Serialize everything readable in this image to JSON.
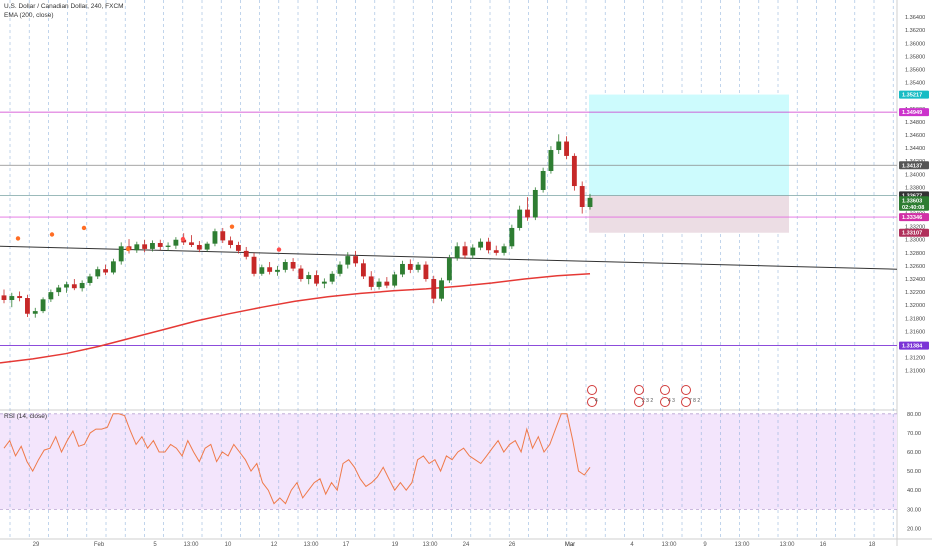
{
  "legend": {
    "symbol": "U.S. Dollar / Canadian Dollar, 240, FXCM",
    "indicator": "EMA (200, close)",
    "rsi_title": "RSI (14, close)"
  },
  "colors": {
    "up": "#2e7d32",
    "down": "#c62828",
    "ema": "#e53935",
    "rsi": "#ef7a4a",
    "rsi_band": "#f3e5fc",
    "tp_zone": "#cdfbfd",
    "sl_zone": "#ecdde4",
    "hline_magenta": "#cc33cc",
    "hline_gray": "#888888",
    "hline_purple": "#7b33d6",
    "trendline": "#333333",
    "vgrid": "#7ea6d6"
  },
  "chart_data": [
    {
      "type": "candlestick",
      "title": "U.S. Dollar / Canadian Dollar, 240, FXCM",
      "ylim": [
        1.304,
        1.366
      ],
      "y_ticks": [
        "1.36400",
        "1.36200",
        "1.36000",
        "1.35800",
        "1.35600",
        "1.35400",
        "1.35200",
        "1.35000",
        "1.34800",
        "1.34600",
        "1.34400",
        "1.34200",
        "1.34000",
        "1.33800",
        "1.33600",
        "1.33400",
        "1.33200",
        "1.33000",
        "1.32800",
        "1.32600",
        "1.32400",
        "1.32200",
        "1.32000",
        "1.31800",
        "1.31600",
        "1.31400",
        "1.31200",
        "1.31000"
      ],
      "x_ticks": [
        "29",
        "Feb",
        "5",
        "13:00",
        "10",
        "12",
        "13:00",
        "17",
        "19",
        "13:00",
        "24",
        "26",
        "Mar",
        "4",
        "13:00",
        "9",
        "13:00",
        "13:00",
        "16",
        "18"
      ],
      "price_labels": [
        {
          "text": "1.35217",
          "value": 1.35217,
          "color": "#17bcc4"
        },
        {
          "text": "1.34949",
          "value": 1.34949,
          "color": "#cc33cc"
        },
        {
          "text": "1.34137",
          "value": 1.34137,
          "color": "#555555"
        },
        {
          "text": "1.33677",
          "value": 1.33677,
          "color": "#333333"
        },
        {
          "text": "1.33603",
          "value": 1.33603,
          "color": "#2e7d32"
        },
        {
          "text": "02:40:08",
          "value": 1.33503,
          "color": "#2e7d32"
        },
        {
          "text": "1.33346",
          "value": 1.33346,
          "color": "#d12fa6"
        },
        {
          "text": "1.33107",
          "value": 1.33107,
          "color": "#b0305b"
        },
        {
          "text": "1.31384",
          "value": 1.31384,
          "color": "#7b33d6"
        }
      ],
      "horizontal_lines": [
        1.34949,
        1.34137,
        1.33677,
        1.33346,
        1.31384
      ],
      "ema_200": [
        1.3112,
        1.3118,
        1.3126,
        1.3137,
        1.315,
        1.3163,
        1.3176,
        1.3187,
        1.3197,
        1.3206,
        1.3213,
        1.3218,
        1.3222,
        1.3225,
        1.3229,
        1.3234,
        1.324,
        1.3245,
        1.3248
      ],
      "trendline": {
        "start": 1.329,
        "end": 1.3255
      },
      "position": {
        "entry": 1.33677,
        "target": 1.35217,
        "stop": 1.33107
      },
      "candles": [
        {
          "o": 1.3215,
          "h": 1.3224,
          "l": 1.3203,
          "c": 1.3208
        },
        {
          "o": 1.3208,
          "h": 1.3219,
          "l": 1.3197,
          "c": 1.3214
        },
        {
          "o": 1.3214,
          "h": 1.3221,
          "l": 1.3206,
          "c": 1.3211
        },
        {
          "o": 1.3211,
          "h": 1.3216,
          "l": 1.3182,
          "c": 1.3187
        },
        {
          "o": 1.3187,
          "h": 1.3196,
          "l": 1.3181,
          "c": 1.3191
        },
        {
          "o": 1.3191,
          "h": 1.3212,
          "l": 1.3188,
          "c": 1.3209
        },
        {
          "o": 1.3209,
          "h": 1.3224,
          "l": 1.3205,
          "c": 1.322
        },
        {
          "o": 1.322,
          "h": 1.3231,
          "l": 1.3214,
          "c": 1.3227
        },
        {
          "o": 1.3227,
          "h": 1.3236,
          "l": 1.3219,
          "c": 1.3232
        },
        {
          "o": 1.3232,
          "h": 1.324,
          "l": 1.3223,
          "c": 1.3226
        },
        {
          "o": 1.3226,
          "h": 1.3238,
          "l": 1.3221,
          "c": 1.3234
        },
        {
          "o": 1.3234,
          "h": 1.3248,
          "l": 1.323,
          "c": 1.3244
        },
        {
          "o": 1.3244,
          "h": 1.3259,
          "l": 1.324,
          "c": 1.3255
        },
        {
          "o": 1.3255,
          "h": 1.3262,
          "l": 1.3246,
          "c": 1.325
        },
        {
          "o": 1.325,
          "h": 1.3271,
          "l": 1.3247,
          "c": 1.3267
        },
        {
          "o": 1.3267,
          "h": 1.3296,
          "l": 1.3262,
          "c": 1.329
        },
        {
          "o": 1.329,
          "h": 1.3301,
          "l": 1.3279,
          "c": 1.3284
        },
        {
          "o": 1.3284,
          "h": 1.3297,
          "l": 1.328,
          "c": 1.3293
        },
        {
          "o": 1.3293,
          "h": 1.33,
          "l": 1.3281,
          "c": 1.3286
        },
        {
          "o": 1.3286,
          "h": 1.3299,
          "l": 1.3282,
          "c": 1.3295
        },
        {
          "o": 1.3295,
          "h": 1.33,
          "l": 1.3284,
          "c": 1.3289
        },
        {
          "o": 1.3289,
          "h": 1.3296,
          "l": 1.3283,
          "c": 1.3291
        },
        {
          "o": 1.3291,
          "h": 1.3304,
          "l": 1.3286,
          "c": 1.33
        },
        {
          "o": 1.33,
          "h": 1.331,
          "l": 1.3292,
          "c": 1.3296
        },
        {
          "o": 1.3296,
          "h": 1.3307,
          "l": 1.3289,
          "c": 1.3292
        },
        {
          "o": 1.3292,
          "h": 1.3298,
          "l": 1.3281,
          "c": 1.3285
        },
        {
          "o": 1.3285,
          "h": 1.3297,
          "l": 1.3282,
          "c": 1.3294
        },
        {
          "o": 1.3294,
          "h": 1.3317,
          "l": 1.329,
          "c": 1.3313
        },
        {
          "o": 1.3313,
          "h": 1.3318,
          "l": 1.3295,
          "c": 1.3299
        },
        {
          "o": 1.3299,
          "h": 1.3305,
          "l": 1.3287,
          "c": 1.3292
        },
        {
          "o": 1.3292,
          "h": 1.3297,
          "l": 1.3279,
          "c": 1.3283
        },
        {
          "o": 1.3283,
          "h": 1.3289,
          "l": 1.327,
          "c": 1.3274
        },
        {
          "o": 1.3274,
          "h": 1.328,
          "l": 1.3244,
          "c": 1.3248
        },
        {
          "o": 1.3248,
          "h": 1.3262,
          "l": 1.3245,
          "c": 1.3258
        },
        {
          "o": 1.3258,
          "h": 1.3266,
          "l": 1.3247,
          "c": 1.3251
        },
        {
          "o": 1.3251,
          "h": 1.326,
          "l": 1.3245,
          "c": 1.3254
        },
        {
          "o": 1.3254,
          "h": 1.327,
          "l": 1.325,
          "c": 1.3266
        },
        {
          "o": 1.3266,
          "h": 1.3272,
          "l": 1.3252,
          "c": 1.3256
        },
        {
          "o": 1.3256,
          "h": 1.3261,
          "l": 1.3236,
          "c": 1.324
        },
        {
          "o": 1.324,
          "h": 1.3251,
          "l": 1.3232,
          "c": 1.3246
        },
        {
          "o": 1.3246,
          "h": 1.3253,
          "l": 1.3229,
          "c": 1.3233
        },
        {
          "o": 1.3233,
          "h": 1.3241,
          "l": 1.3226,
          "c": 1.3236
        },
        {
          "o": 1.3236,
          "h": 1.3252,
          "l": 1.3232,
          "c": 1.3248
        },
        {
          "o": 1.3248,
          "h": 1.3267,
          "l": 1.3244,
          "c": 1.3262
        },
        {
          "o": 1.3262,
          "h": 1.3281,
          "l": 1.3256,
          "c": 1.3275
        },
        {
          "o": 1.3275,
          "h": 1.3283,
          "l": 1.3259,
          "c": 1.3264
        },
        {
          "o": 1.3264,
          "h": 1.327,
          "l": 1.324,
          "c": 1.3244
        },
        {
          "o": 1.3244,
          "h": 1.3252,
          "l": 1.3223,
          "c": 1.3228
        },
        {
          "o": 1.3228,
          "h": 1.3241,
          "l": 1.3224,
          "c": 1.3236
        },
        {
          "o": 1.3236,
          "h": 1.3243,
          "l": 1.3226,
          "c": 1.323
        },
        {
          "o": 1.323,
          "h": 1.3251,
          "l": 1.3227,
          "c": 1.3247
        },
        {
          "o": 1.3247,
          "h": 1.3268,
          "l": 1.3243,
          "c": 1.3263
        },
        {
          "o": 1.3263,
          "h": 1.327,
          "l": 1.3249,
          "c": 1.3254
        },
        {
          "o": 1.3254,
          "h": 1.3266,
          "l": 1.325,
          "c": 1.3262
        },
        {
          "o": 1.3262,
          "h": 1.3267,
          "l": 1.3236,
          "c": 1.324
        },
        {
          "o": 1.324,
          "h": 1.3245,
          "l": 1.3203,
          "c": 1.321
        },
        {
          "o": 1.321,
          "h": 1.3242,
          "l": 1.3206,
          "c": 1.3238
        },
        {
          "o": 1.3238,
          "h": 1.3277,
          "l": 1.3234,
          "c": 1.3272
        },
        {
          "o": 1.3272,
          "h": 1.3296,
          "l": 1.3268,
          "c": 1.329
        },
        {
          "o": 1.329,
          "h": 1.3297,
          "l": 1.3271,
          "c": 1.3276
        },
        {
          "o": 1.3276,
          "h": 1.3293,
          "l": 1.3271,
          "c": 1.3288
        },
        {
          "o": 1.3288,
          "h": 1.3302,
          "l": 1.3284,
          "c": 1.3297
        },
        {
          "o": 1.3297,
          "h": 1.3303,
          "l": 1.3279,
          "c": 1.3284
        },
        {
          "o": 1.3284,
          "h": 1.3291,
          "l": 1.3276,
          "c": 1.328
        },
        {
          "o": 1.328,
          "h": 1.3294,
          "l": 1.3276,
          "c": 1.329
        },
        {
          "o": 1.329,
          "h": 1.3323,
          "l": 1.3286,
          "c": 1.3318
        },
        {
          "o": 1.3318,
          "h": 1.3352,
          "l": 1.3314,
          "c": 1.3346
        },
        {
          "o": 1.3346,
          "h": 1.3365,
          "l": 1.3329,
          "c": 1.3334
        },
        {
          "o": 1.3334,
          "h": 1.338,
          "l": 1.333,
          "c": 1.3376
        },
        {
          "o": 1.3376,
          "h": 1.341,
          "l": 1.3372,
          "c": 1.3405
        },
        {
          "o": 1.3405,
          "h": 1.3443,
          "l": 1.3401,
          "c": 1.3437
        },
        {
          "o": 1.3437,
          "h": 1.3461,
          "l": 1.3431,
          "c": 1.345
        },
        {
          "o": 1.345,
          "h": 1.3458,
          "l": 1.3423,
          "c": 1.3428
        },
        {
          "o": 1.3428,
          "h": 1.3432,
          "l": 1.3375,
          "c": 1.3382
        },
        {
          "o": 1.3382,
          "h": 1.3389,
          "l": 1.334,
          "c": 1.335
        },
        {
          "o": 1.335,
          "h": 1.337,
          "l": 1.3346,
          "c": 1.3364
        }
      ]
    },
    {
      "type": "line",
      "title": "RSI (14, close)",
      "ylim": [
        15,
        82
      ],
      "y_ticks": [
        "80.00",
        "70.00",
        "60.00",
        "50.00",
        "40.00",
        "30.00",
        "20.00"
      ],
      "band": [
        30,
        80
      ],
      "values": [
        62,
        66,
        58,
        63,
        55,
        50,
        56,
        61,
        62,
        68,
        60,
        66,
        71,
        63,
        64,
        70,
        72,
        72,
        73,
        80,
        80,
        79,
        71,
        64,
        68,
        62,
        66,
        60,
        60,
        64,
        62,
        58,
        66,
        60,
        55,
        62,
        64,
        55,
        60,
        58,
        64,
        60,
        56,
        50,
        54,
        44,
        40,
        33,
        36,
        33,
        40,
        44,
        36,
        40,
        44,
        46,
        38,
        44,
        40,
        54,
        56,
        52,
        46,
        42,
        44,
        47,
        52,
        46,
        40,
        44,
        40,
        44,
        56,
        58,
        54,
        56,
        50,
        58,
        56,
        60,
        62,
        58,
        56,
        54,
        58,
        62,
        66,
        60,
        64,
        66,
        60,
        72,
        62,
        68,
        60,
        64,
        72,
        80,
        80,
        66,
        50,
        48,
        52
      ]
    }
  ],
  "event_markers": [
    {
      "label": "",
      "value": "4"
    },
    {
      "label": "",
      "value": "2 3 2"
    },
    {
      "label": "",
      "value": "4 3"
    },
    {
      "label": "",
      "value": "7 8 2"
    }
  ]
}
